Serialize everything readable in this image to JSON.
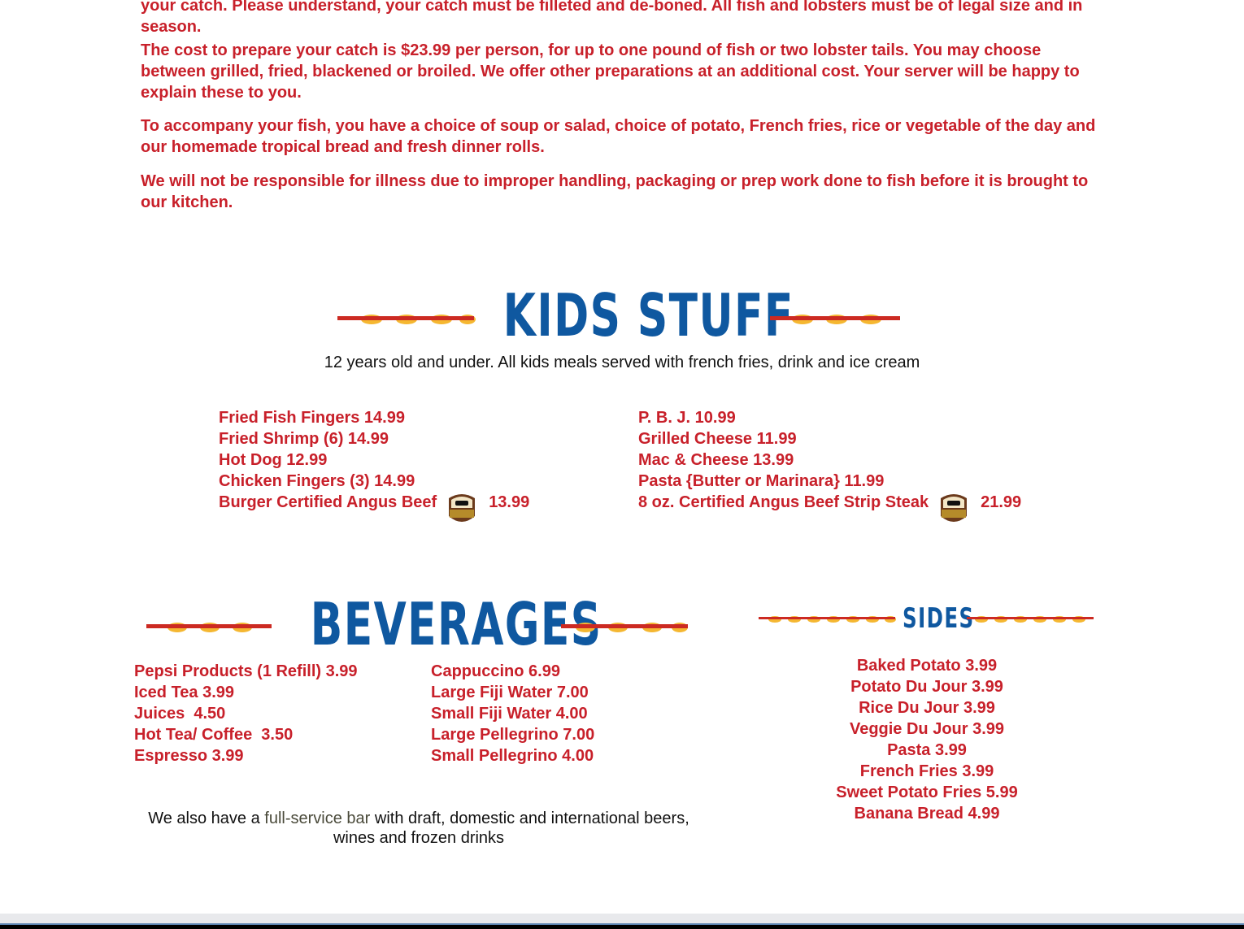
{
  "intro": {
    "paragraphs": [
      "your catch. Please understand, your catch must be filleted and de-boned. All fish and lobsters must be of legal size and in season.",
      "The cost to prepare your catch is $23.99 per person, for up to one pound of fish or two lobster tails. You may choose between grilled, fried, blackened or broiled. We offer other preparations at an additional cost. Your server will be happy to explain these to you.",
      "To accompany your fish, you have a choice of soup or salad, choice of potato, French fries, rice or vegetable of the day and our homemade tropical bread and fresh dinner rolls.",
      "We will not be responsible for illness due to improper handling, packaging or prep work done to fish before it is brought to our kitchen."
    ]
  },
  "kids": {
    "title": "KIDS STUFF",
    "subtitle": "12 years old and under. All kids meals served with french fries, drink and ice cream",
    "left": [
      "Fried Fish Fingers 14.99",
      "Fried Shrimp (6) 14.99",
      "Hot Dog 12.99",
      "Chicken Fingers (3) 14.99"
    ],
    "left_last": {
      "label": "Burger Certified Angus Beef",
      "price": "13.99"
    },
    "right": [
      "P. B. J. 10.99",
      "Grilled Cheese 11.99",
      "Mac & Cheese 13.99",
      "Pasta {Butter or Marinara} 11.99"
    ],
    "right_last": {
      "label": "8 oz. Certified Angus Beef Strip Steak",
      "price": "21.99"
    },
    "badge_text": "CERTIFIED ANGUS BEEF"
  },
  "beverages": {
    "title": "BEVERAGES",
    "col1": [
      "Pepsi Products (1 Refill) 3.99",
      "Iced Tea 3.99",
      "Juices  4.50",
      "Hot Tea/ Coffee  3.50",
      "Espresso 3.99"
    ],
    "col2": [
      "Cappuccino 6.99",
      "Large Fiji Water 7.00",
      "Small Fiji Water 4.00",
      "Large Pellegrino 7.00",
      "Small Pellegrino 4.00"
    ],
    "bar_prefix": "We also have a ",
    "bar_link": "full-service bar",
    "bar_suffix": " with draft, domestic and international beers, wines and frozen drinks"
  },
  "sides": {
    "title": "SIDES",
    "items": [
      "Baked Potato 3.99",
      "Potato Du Jour 3.99",
      "Rice Du Jour 3.99",
      "Veggie Du Jour 3.99",
      "Pasta 3.99",
      "French Fries 3.99",
      "Sweet Potato Fries 5.99",
      "Banana Bread 4.99"
    ]
  },
  "colors": {
    "accent_red": "#c8202a",
    "title_blue": "#0f58a0",
    "wave_yellow": "#f5b731"
  }
}
